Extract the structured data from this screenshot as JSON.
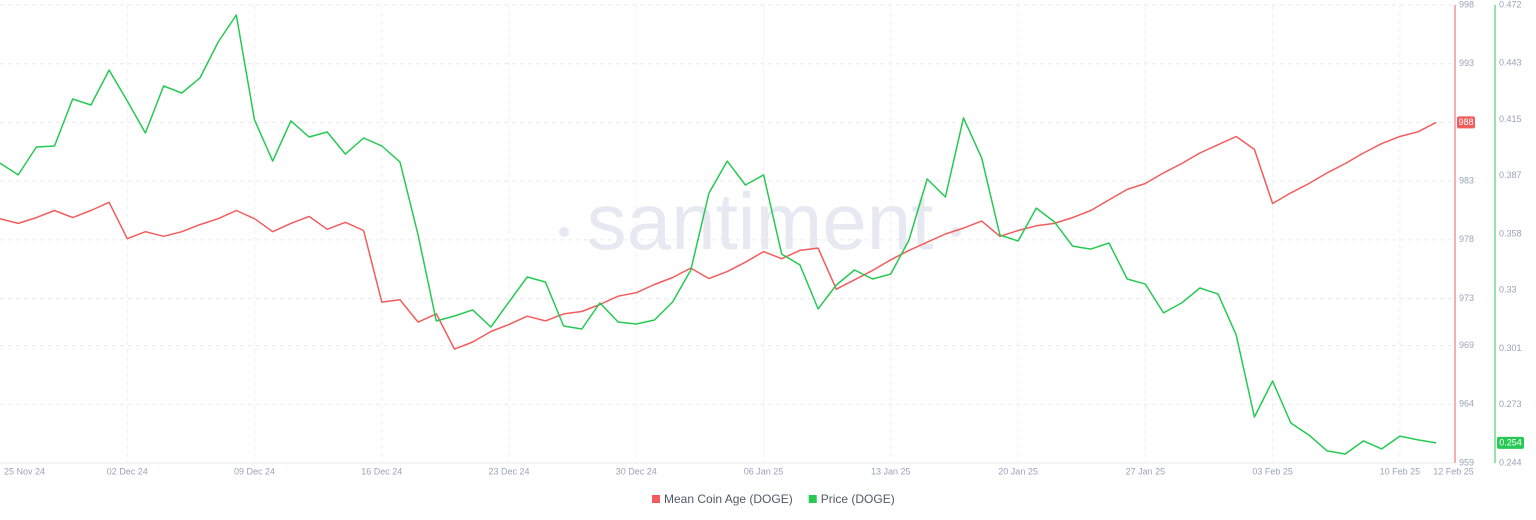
{
  "chart_data": {
    "type": "line",
    "watermark": "santiment",
    "categories": [
      "25 Nov 24",
      null,
      null,
      null,
      null,
      null,
      null,
      "02 Dec 24",
      null,
      null,
      null,
      null,
      null,
      null,
      "09 Dec 24",
      null,
      null,
      null,
      null,
      null,
      null,
      "16 Dec 24",
      null,
      null,
      null,
      null,
      null,
      null,
      "23 Dec 24",
      null,
      null,
      null,
      null,
      null,
      null,
      "30 Dec 24",
      null,
      null,
      null,
      null,
      null,
      null,
      "06 Jan 25",
      null,
      null,
      null,
      null,
      null,
      null,
      "13 Jan 25",
      null,
      null,
      null,
      null,
      null,
      null,
      "20 Jan 25",
      null,
      null,
      null,
      null,
      null,
      null,
      "27 Jan 25",
      null,
      null,
      null,
      null,
      null,
      null,
      "03 Feb 25",
      null,
      null,
      null,
      null,
      null,
      null,
      "10 Feb 25",
      null,
      "12 Feb 25"
    ],
    "ylim": [
      959,
      998
    ],
    "yticks": [
      998,
      993,
      988,
      983,
      978,
      973,
      969,
      964,
      959
    ],
    "y2lim": [
      0.244,
      0.472
    ],
    "y2ticks": [
      0.472,
      0.443,
      0.415,
      0.387,
      0.358,
      0.33,
      0.301,
      0.273,
      0.244
    ],
    "grid": true,
    "series": [
      {
        "name": "Mean Coin Age (DOGE)",
        "color": "#f25c5c",
        "values": [
          979.8,
          979.4,
          979.9,
          980.5,
          979.9,
          980.5,
          981.2,
          978.1,
          978.7,
          978.3,
          978.7,
          979.3,
          979.8,
          980.5,
          979.8,
          978.7,
          979.4,
          980.0,
          978.9,
          979.5,
          978.8,
          972.7,
          972.9,
          971.0,
          971.7,
          968.7,
          969.3,
          970.2,
          970.8,
          971.5,
          971.1,
          971.7,
          971.9,
          972.5,
          973.2,
          973.5,
          974.2,
          974.8,
          975.6,
          974.7,
          975.3,
          976.1,
          977.0,
          976.4,
          977.1,
          977.3,
          973.8,
          974.6,
          975.4,
          976.3,
          977.1,
          977.8,
          978.5,
          979.0,
          979.6,
          978.3,
          978.8,
          979.2,
          979.4,
          979.9,
          980.5,
          981.4,
          982.3,
          982.8,
          983.7,
          984.5,
          985.4,
          986.1,
          986.8,
          985.7,
          981.1,
          982.0,
          982.8,
          983.7,
          984.5,
          985.4,
          986.2,
          986.8,
          987.2,
          988
        ]
      },
      {
        "name": "Price (DOGE)",
        "color": "#26c953",
        "axis": "y2",
        "values": [
          0.3933,
          0.3874,
          0.4013,
          0.4018,
          0.4252,
          0.4222,
          0.4396,
          0.4242,
          0.4083,
          0.4317,
          0.4282,
          0.4357,
          0.4536,
          0.467,
          0.4148,
          0.3943,
          0.4143,
          0.4063,
          0.4088,
          0.3978,
          0.4058,
          0.4018,
          0.3938,
          0.3575,
          0.3147,
          0.3172,
          0.3202,
          0.3117,
          0.3242,
          0.3366,
          0.3341,
          0.3122,
          0.3107,
          0.3237,
          0.3142,
          0.3132,
          0.3152,
          0.3242,
          0.3401,
          0.3784,
          0.3943,
          0.3824,
          0.3874,
          0.348,
          0.3426,
          0.3207,
          0.3326,
          0.3401,
          0.3356,
          0.3381,
          0.355,
          0.3854,
          0.3764,
          0.4158,
          0.3958,
          0.3575,
          0.3545,
          0.3709,
          0.364,
          0.352,
          0.3505,
          0.3535,
          0.3356,
          0.3331,
          0.3187,
          0.3237,
          0.3311,
          0.3281,
          0.3077,
          0.2669,
          0.2848,
          0.2639,
          0.2579,
          0.25,
          0.2485,
          0.255,
          0.251,
          0.2574,
          0.2555,
          0.254
        ]
      }
    ]
  }
}
